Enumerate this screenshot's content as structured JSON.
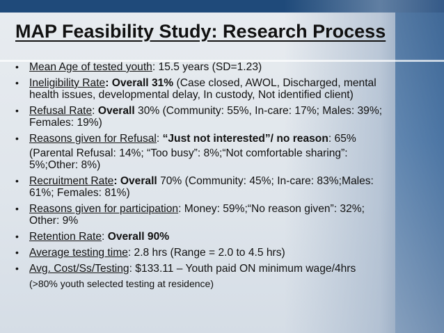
{
  "slide": {
    "title": "MAP Feasibility Study: Research Process",
    "bullet_symbol": "•",
    "items": [
      {
        "label": "Mean Age of tested youth",
        "sep": ": ",
        "value": "15.5 years (SD=1.23)"
      },
      {
        "label": "Ineligibility Rate",
        "bold": ": Overall 31%",
        "value": " (Case closed, AWOL, Discharged, mental",
        "cont": "health issues, developmental delay, In custody, Not identified client)"
      },
      {
        "label": "Refusal Rate",
        "sep": ": ",
        "bold": "Overall",
        "value": " 30% (Community: 55%, In-care: 17%; Males: 39%;",
        "cont": "Females: 19%)"
      },
      {
        "label": "Reasons given for Refusal",
        "sep": ": ",
        "bold": "“Just not interested”/ no reason",
        "value": ": 65%",
        "cont": "(Parental Refusal: 14%; “Too busy”: 8%;“Not comfortable sharing”:",
        "cont2": "5%;Other: 8%)"
      },
      {
        "label": "Recruitment Rate",
        "bold": ":  Overall",
        "value": " 70% (Community: 45%; In-care: 83%;Males:",
        "cont": "61%; Females: 81%)"
      },
      {
        "label": "Reasons given for participation",
        "sep": ":  ",
        "value": "Money: 59%;“No reason given”: 32%;",
        "cont": "Other: 9%"
      },
      {
        "label": "Retention Rate",
        "sep": ": ",
        "bold": "Overall 90%"
      },
      {
        "label": "Average testing time",
        "sep": ": ",
        "value": "2.8 hrs (Range = 2.0 to 4.5 hrs)"
      },
      {
        "label": "Avg. Cost/Ss/Testing",
        "sep": ": ",
        "value": "$133.11 – Youth paid ON minimum wage/4hrs",
        "note": "(>80% youth selected testing at residence)"
      }
    ]
  }
}
